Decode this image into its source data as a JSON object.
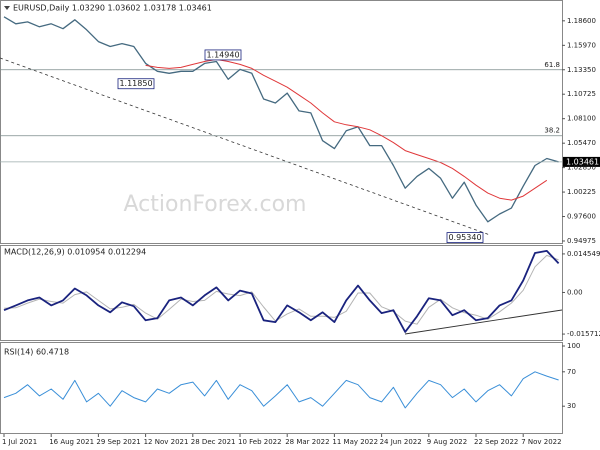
{
  "chart_data": [
    {
      "type": "line",
      "title": "EURUSD,Daily  1.03290 1.03602 1.03178 1.03461",
      "watermark": "ActionForex.com",
      "ylim": [
        0.9476,
        1.2062
      ],
      "yticks": [
        {
          "value": 1.186,
          "label": "1.18600"
        },
        {
          "value": 1.1597,
          "label": "1.15970"
        },
        {
          "value": 1.1335,
          "label": "1.13350"
        },
        {
          "value": 1.10725,
          "label": "1.10725"
        },
        {
          "value": 1.081,
          "label": "1.08100"
        },
        {
          "value": 1.0547,
          "label": "1.05470"
        },
        {
          "value": 1.0285,
          "label": "1.02850"
        },
        {
          "value": 1.00225,
          "label": "1.00225"
        },
        {
          "value": 0.976,
          "label": "0.97600"
        },
        {
          "value": 0.94975,
          "label": "0.94975"
        }
      ],
      "levels": [
        {
          "value": 1.1335,
          "label": "61.8"
        },
        {
          "value": 1.0627,
          "label": "38.2"
        }
      ],
      "last_price": {
        "value": 1.03461,
        "label": "1.03461"
      },
      "annotations": [
        {
          "value": 1.1494,
          "label": "1.14940"
        },
        {
          "value": 1.1185,
          "label": "1.11850"
        },
        {
          "value": 0.9534,
          "label": "0.95340"
        }
      ],
      "series": [
        {
          "color": "#456a80",
          "values": [
            1.1903,
            1.1828,
            1.1849,
            1.1796,
            1.1828,
            1.1775,
            1.1871,
            1.1764,
            1.1637,
            1.1584,
            1.1616,
            1.1584,
            1.1403,
            1.1318,
            1.1297,
            1.1318,
            1.1318,
            1.1403,
            1.1424,
            1.1233,
            1.1339,
            1.1297,
            1.1021,
            1.0978,
            1.1084,
            1.0893,
            1.0872,
            1.0574,
            1.0489,
            1.068,
            1.0723,
            1.0521,
            1.0521,
            1.0308,
            1.0064,
            1.0191,
            1.0276,
            1.017,
            0.9957,
            1.0128,
            0.9883,
            0.9703,
            0.9787,
            0.9851,
            1.0085,
            1.0308,
            1.0383,
            1.0346
          ]
        },
        {
          "color": "#e0383a",
          "values": [
            null,
            null,
            null,
            null,
            null,
            null,
            null,
            null,
            null,
            null,
            null,
            null,
            1.1382,
            1.136,
            1.135,
            1.136,
            1.1392,
            1.1424,
            1.1446,
            1.1424,
            1.1392,
            1.135,
            1.1275,
            1.1212,
            1.1148,
            1.1063,
            1.0978,
            1.0872,
            1.0776,
            1.0744,
            1.0723,
            1.0691,
            1.0627,
            1.0553,
            1.0468,
            1.0425,
            1.0383,
            1.034,
            1.0276,
            1.0191,
            1.0096,
            1.0011,
            0.9957,
            0.9936,
            0.9979,
            1.0064,
            1.0149,
            null
          ]
        }
      ]
    },
    {
      "type": "line",
      "title": "MACD(12,26,9) 0.010954 0.012294",
      "ylim": [
        -0.01795,
        0.01754
      ],
      "yticks": [
        0.014549,
        {
          "value": 0,
          "label": "0.00"
        },
        -0.015712
      ],
      "series": [
        {
          "color": "#b4b4b4",
          "values": [
            -0.006,
            -0.0058,
            -0.004,
            -0.0025,
            -0.0034,
            -0.004,
            -0.0008,
            0.0002,
            -0.003,
            -0.0062,
            -0.0056,
            -0.0045,
            -0.0078,
            -0.0101,
            -0.0064,
            -0.0025,
            -0.0034,
            -0.003,
            0.0004,
            -0.0006,
            -0.0012,
            0.0002,
            -0.0055,
            -0.0108,
            -0.0081,
            -0.0062,
            -0.009,
            -0.009,
            -0.0094,
            -0.0071,
            -0.0002,
            -0.0002,
            -0.0054,
            -0.0072,
            -0.0108,
            -0.012,
            -0.0056,
            -0.0026,
            -0.0058,
            -0.0076,
            -0.0086,
            -0.0101,
            -0.0073,
            -0.004,
            0.0008,
            0.0097,
            0.014,
            0.012294
          ]
        },
        {
          "color": "#1a237e",
          "values": [
            -0.0067,
            -0.0049,
            -0.003,
            -0.0019,
            -0.0049,
            -0.003,
            0.0015,
            -0.0011,
            -0.0049,
            -0.0075,
            -0.0037,
            -0.0052,
            -0.0105,
            -0.0097,
            -0.003,
            -0.0019,
            -0.0049,
            -0.0011,
            0.0019,
            -0.003,
            0.0007,
            -0.0004,
            -0.0105,
            -0.0112,
            -0.0049,
            -0.0075,
            -0.0105,
            -0.0075,
            -0.0112,
            -0.003,
            0.0026,
            -0.003,
            -0.0078,
            -0.0067,
            -0.0149,
            -0.009,
            -0.0022,
            -0.003,
            -0.0086,
            -0.0067,
            -0.0105,
            -0.0097,
            -0.0049,
            -0.003,
            0.0045,
            0.0149,
            0.0157,
            0.010954
          ]
        }
      ]
    },
    {
      "type": "line",
      "title": "RSI(14) 60.4718",
      "ylim": [
        0,
        100
      ],
      "yticks": [
        100,
        70,
        30
      ],
      "categories": [
        "1 Jul 2021",
        null,
        null,
        null,
        "16 Aug 2021",
        null,
        null,
        null,
        "29 Sep 2021",
        null,
        null,
        null,
        "12 Nov 2021",
        null,
        null,
        null,
        "28 Dec 2021",
        null,
        null,
        null,
        "10 Feb 2022",
        null,
        null,
        null,
        "28 Mar 2022",
        null,
        null,
        null,
        "11 May 2022",
        null,
        null,
        null,
        "24 Jun 2022",
        null,
        null,
        null,
        "9 Aug 2022",
        null,
        null,
        null,
        "22 Sep 2022",
        null,
        null,
        null,
        "7 Nov 2022",
        null,
        null,
        null
      ],
      "series": [
        {
          "color": "#3a8fd8",
          "values": [
            40,
            45,
            55,
            42,
            50,
            38,
            60,
            35,
            45,
            30,
            48,
            40,
            35,
            50,
            45,
            55,
            58,
            42,
            60,
            38,
            55,
            48,
            30,
            42,
            55,
            35,
            40,
            30,
            45,
            60,
            55,
            40,
            35,
            52,
            28,
            45,
            60,
            55,
            40,
            50,
            35,
            48,
            55,
            42,
            62,
            70,
            65,
            60.4718
          ]
        }
      ]
    }
  ]
}
